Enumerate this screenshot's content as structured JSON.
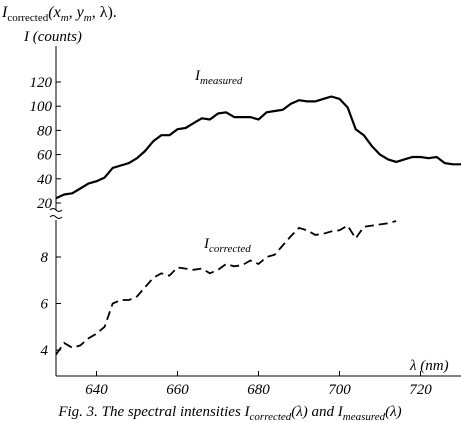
{
  "heading": {
    "symbol": "I",
    "subscript": "corrected",
    "args": "(x",
    "args_sub1": "m",
    "args_mid": ", y",
    "args_sub2": "m",
    "args_end": ", λ)."
  },
  "caption": {
    "prefix": "Fig. 3. The spectral intensities ",
    "sym1": "I",
    "sub1": "corrected",
    "mid": "(λ) and ",
    "sym2": "I",
    "sub2": "measured",
    "end": "(λ)"
  },
  "chart_data": {
    "type": "line",
    "broken_y_axis": true,
    "ylabel": "I (counts)",
    "xlabel": "λ (nm)",
    "xlim": [
      630,
      730
    ],
    "x_ticks": [
      640,
      660,
      680,
      700,
      720
    ],
    "upper_panel": {
      "ylim": [
        20,
        120
      ],
      "y_ticks": [
        20,
        40,
        60,
        80,
        100,
        120
      ],
      "series": [
        {
          "name": "I",
          "name_sub": "measured",
          "style": "solid",
          "color": "#000000",
          "points": [
            [
              630,
              24
            ],
            [
              632,
              27
            ],
            [
              634,
              28
            ],
            [
              636,
              32
            ],
            [
              638,
              36
            ],
            [
              640,
              38
            ],
            [
              642,
              41
            ],
            [
              644,
              49
            ],
            [
              646,
              51
            ],
            [
              648,
              53
            ],
            [
              650,
              57
            ],
            [
              652,
              63
            ],
            [
              654,
              71
            ],
            [
              656,
              76
            ],
            [
              658,
              76
            ],
            [
              660,
              81
            ],
            [
              662,
              82
            ],
            [
              664,
              86
            ],
            [
              666,
              90
            ],
            [
              668,
              89
            ],
            [
              670,
              94
            ],
            [
              672,
              95
            ],
            [
              674,
              91
            ],
            [
              676,
              91
            ],
            [
              678,
              91
            ],
            [
              680,
              89
            ],
            [
              682,
              95
            ],
            [
              684,
              96
            ],
            [
              686,
              97
            ],
            [
              688,
              102
            ],
            [
              690,
              105
            ],
            [
              692,
              104
            ],
            [
              694,
              104
            ],
            [
              696,
              106
            ],
            [
              698,
              108
            ],
            [
              700,
              106
            ],
            [
              702,
              99
            ],
            [
              704,
              81
            ],
            [
              706,
              76
            ],
            [
              708,
              67
            ],
            [
              710,
              60
            ],
            [
              712,
              56
            ],
            [
              714,
              54
            ],
            [
              716,
              56
            ],
            [
              718,
              58
            ],
            [
              720,
              58
            ],
            [
              722,
              57
            ],
            [
              724,
              58
            ],
            [
              726,
              53
            ],
            [
              728,
              52
            ],
            [
              730,
              52
            ]
          ]
        }
      ]
    },
    "lower_panel": {
      "ylim": [
        3.5,
        9.6
      ],
      "y_ticks": [
        4,
        6,
        8
      ],
      "series": [
        {
          "name": "I",
          "name_sub": "corrected",
          "style": "dashed",
          "color": "#000000",
          "points": [
            [
              630,
              3.8
            ],
            [
              632,
              4.3
            ],
            [
              634,
              4.1
            ],
            [
              636,
              4.2
            ],
            [
              638,
              4.5
            ],
            [
              640,
              4.7
            ],
            [
              642,
              5.0
            ],
            [
              644,
              6.0
            ],
            [
              646,
              6.15
            ],
            [
              648,
              6.15
            ],
            [
              650,
              6.3
            ],
            [
              652,
              6.7
            ],
            [
              654,
              7.1
            ],
            [
              656,
              7.3
            ],
            [
              658,
              7.2
            ],
            [
              660,
              7.55
            ],
            [
              662,
              7.5
            ],
            [
              664,
              7.45
            ],
            [
              666,
              7.5
            ],
            [
              668,
              7.3
            ],
            [
              670,
              7.45
            ],
            [
              672,
              7.7
            ],
            [
              674,
              7.6
            ],
            [
              676,
              7.65
            ],
            [
              678,
              7.85
            ],
            [
              680,
              7.7
            ],
            [
              682,
              8.0
            ],
            [
              684,
              8.1
            ],
            [
              686,
              8.5
            ],
            [
              688,
              8.9
            ],
            [
              690,
              9.25
            ],
            [
              692,
              9.15
            ],
            [
              694,
              8.95
            ],
            [
              696,
              9.0
            ],
            [
              698,
              9.1
            ],
            [
              700,
              9.15
            ],
            [
              702,
              9.35
            ],
            [
              704,
              8.8
            ],
            [
              706,
              9.3
            ],
            [
              708,
              9.35
            ],
            [
              710,
              9.4
            ],
            [
              712,
              9.45
            ],
            [
              714,
              9.55
            ]
          ]
        }
      ]
    }
  }
}
